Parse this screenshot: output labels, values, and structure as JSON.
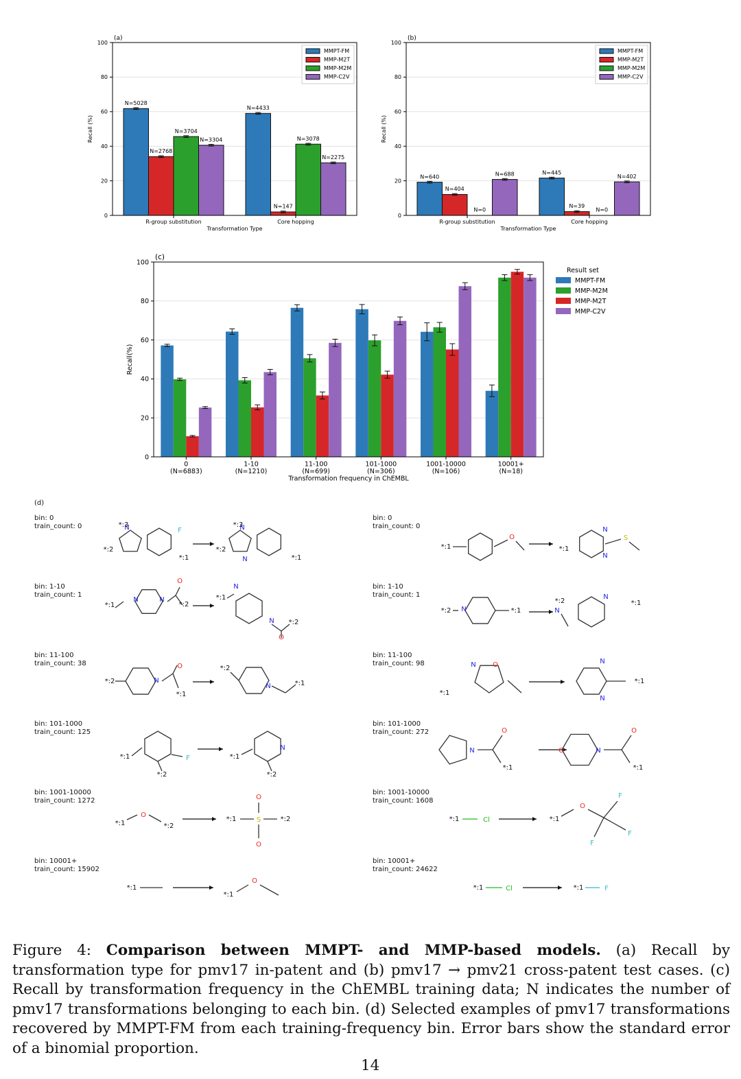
{
  "colors": {
    "MMPT-FM": "#2e7ab8",
    "MMP-M2T": "#d62728",
    "MMP-M2M": "#2ca02c",
    "MMP-C2V": "#9467bd"
  },
  "panels": {
    "a": {
      "label": "(a)"
    },
    "b": {
      "label": "(b)"
    },
    "c": {
      "label": "(c)"
    },
    "d": {
      "label": "(d)"
    }
  },
  "chart_data": [
    {
      "id": "a",
      "type": "bar",
      "categories": [
        "R-group substitution",
        "Core hopping"
      ],
      "xlabel": "Transformation Type",
      "ylabel": "Recall (%)",
      "ylim": [
        0,
        100
      ],
      "yticks": [
        0,
        20,
        40,
        60,
        80,
        100
      ],
      "grid": true,
      "legend": "top-right",
      "series": [
        {
          "name": "MMPT-FM",
          "values": [
            61.8,
            59.0
          ],
          "n": [
            "N=5028",
            "N=4433"
          ]
        },
        {
          "name": "MMP-M2T",
          "values": [
            34.0,
            2.0
          ],
          "n": [
            "N=2768",
            "N=147"
          ]
        },
        {
          "name": "MMP-M2M",
          "values": [
            45.6,
            41.2
          ],
          "n": [
            "N=3704",
            "N=3078"
          ]
        },
        {
          "name": "MMP-C2V",
          "values": [
            40.6,
            30.4
          ],
          "n": [
            "N=3304",
            "N=2275"
          ]
        }
      ]
    },
    {
      "id": "b",
      "type": "bar",
      "categories": [
        "R-group substitution",
        "Core hopping"
      ],
      "xlabel": "Transformation Type",
      "ylabel": "Recall (%)",
      "ylim": [
        0,
        100
      ],
      "yticks": [
        0,
        20,
        40,
        60,
        80,
        100
      ],
      "grid": true,
      "legend": "top-right",
      "series": [
        {
          "name": "MMPT-FM",
          "values": [
            19.2,
            21.6
          ],
          "n": [
            "N=640",
            "N=445"
          ]
        },
        {
          "name": "MMP-M2T",
          "values": [
            12.1,
            2.2
          ],
          "n": [
            "N=404",
            "N=39"
          ]
        },
        {
          "name": "MMP-M2M",
          "values": [
            0,
            0
          ],
          "n": [
            "N=0",
            "N=0"
          ]
        },
        {
          "name": "MMP-C2V",
          "values": [
            20.8,
            19.4
          ],
          "n": [
            "N=688",
            "N=402"
          ]
        }
      ]
    },
    {
      "id": "c",
      "type": "bar",
      "categories": [
        "0",
        "1-10",
        "11-100",
        "101-1000",
        "1001-10000",
        "10001+"
      ],
      "category_n": [
        "(N=6883)",
        "(N=1210)",
        "(N=699)",
        "(N=306)",
        "(N=106)",
        "(N=18)"
      ],
      "xlabel": "Transformation frequency in ChEMBL",
      "ylabel": "Recall(%)",
      "ylim": [
        0,
        100
      ],
      "yticks": [
        0,
        20,
        40,
        60,
        80,
        100
      ],
      "grid": true,
      "legend": "right",
      "legend_title": "Result set",
      "series": [
        {
          "name": "MMPT-FM",
          "values": [
            57.2,
            64.3,
            76.5,
            75.8,
            64.2,
            33.9
          ],
          "err": [
            0.6,
            1.4,
            1.6,
            2.4,
            4.6,
            3.0
          ]
        },
        {
          "name": "MMP-M2M",
          "values": [
            39.8,
            39.3,
            50.6,
            59.8,
            66.5,
            92.0
          ],
          "err": [
            0.6,
            1.4,
            1.9,
            2.8,
            2.5,
            1.5
          ]
        },
        {
          "name": "MMP-M2T",
          "values": [
            10.6,
            25.4,
            31.5,
            42.2,
            55.1,
            95.0
          ],
          "err": [
            0.4,
            1.3,
            1.8,
            1.8,
            3.0,
            1.2
          ]
        },
        {
          "name": "MMP-C2V",
          "values": [
            25.3,
            43.5,
            58.5,
            69.8,
            87.6,
            92.0
          ],
          "err": [
            0.5,
            1.4,
            1.9,
            2.0,
            1.8,
            1.5
          ]
        }
      ]
    }
  ],
  "examples": {
    "left": [
      {
        "bin": "bin: 0",
        "count": "train_count: 0"
      },
      {
        "bin": "bin: 1-10",
        "count": "train_count: 1"
      },
      {
        "bin": "bin: 11-100",
        "count": "train_count: 38"
      },
      {
        "bin": "bin: 101-1000",
        "count": "train_count: 125"
      },
      {
        "bin": "bin: 1001-10000",
        "count": "train_count: 1272"
      },
      {
        "bin": "bin: 10001+",
        "count": "train_count: 15902"
      }
    ],
    "right": [
      {
        "bin": "bin: 0",
        "count": "train_count: 0"
      },
      {
        "bin": "bin: 1-10",
        "count": "train_count: 1"
      },
      {
        "bin": "bin: 11-100",
        "count": "train_count: 98"
      },
      {
        "bin": "bin: 101-1000",
        "count": "train_count: 272"
      },
      {
        "bin": "bin: 1001-10000",
        "count": "train_count: 1608"
      },
      {
        "bin": "bin: 10001+",
        "count": "train_count: 24622"
      }
    ]
  },
  "atoms": {
    "star1": "*:1",
    "star2": "*:2",
    "star3": "*:3",
    "F": "F",
    "N": "N",
    "O": "O",
    "S": "S",
    "Cl": "Cl"
  },
  "caption": {
    "prefix": "Figure 4: ",
    "title": "Comparison between MMPT- and MMP-based models.",
    "body": " (a) Recall by transformation type for pmv17 in-patent and (b) pmv17 → pmv21 cross-patent test cases. (c) Recall by transformation frequency in the ChEMBL training data; N indicates the number of pmv17 transformations belonging to each bin. (d) Selected examples of pmv17 transformations recovered by MMPT-FM from each training-frequency bin. Error bars show the standard error of a binomial proportion."
  },
  "page_number": "14"
}
